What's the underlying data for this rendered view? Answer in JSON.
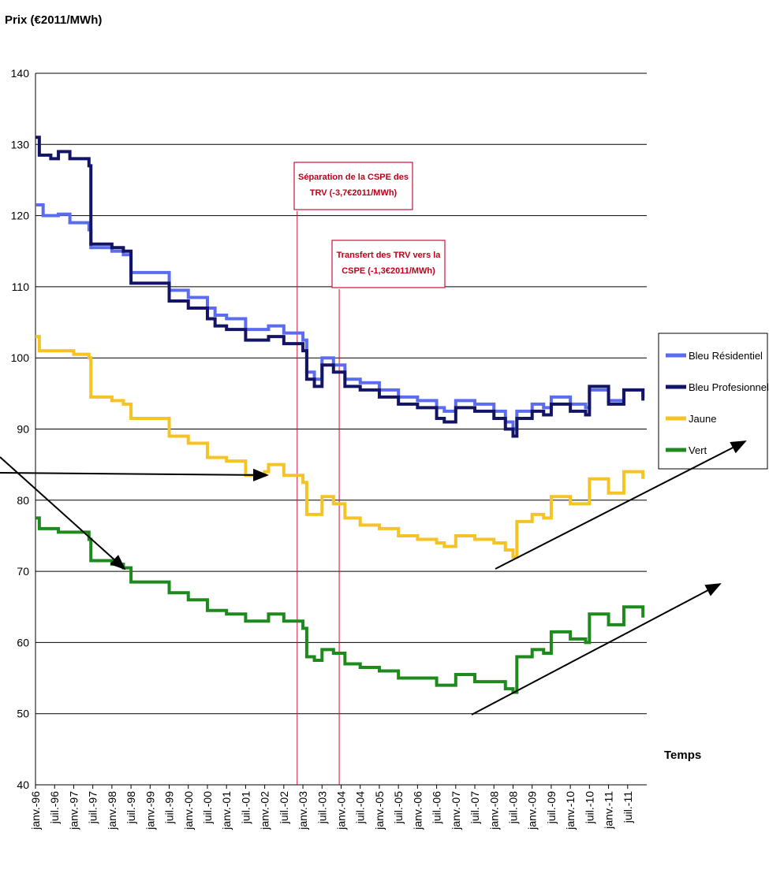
{
  "chart_data": {
    "type": "line",
    "ylabel": "Prix (€2011/MWh)",
    "xlabel": "Temps",
    "ylim": [
      40,
      140
    ],
    "yticks": [
      40,
      50,
      60,
      70,
      80,
      90,
      100,
      110,
      120,
      130,
      140
    ],
    "grid": "horizontal",
    "legend_position": "right",
    "x_ticks": [
      "janv.-96",
      "juil.-96",
      "janv.-97",
      "juil.-97",
      "janv.-98",
      "juil.-98",
      "janv.-99",
      "juil.-99",
      "janv.-00",
      "juil.-00",
      "janv.-01",
      "juil.-01",
      "janv.-02",
      "juil.-02",
      "janv.-03",
      "juil.-03",
      "janv.-04",
      "juil.-04",
      "janv.-05",
      "juil.-05",
      "janv.-06",
      "juil.-06",
      "janv.-07",
      "juil.-07",
      "janv.-08",
      "juil.-08",
      "janv.-09",
      "juil.-09",
      "janv.-10",
      "juil.-10",
      "janv.-11",
      "juil.-11"
    ],
    "series": [
      {
        "name": "Bleu Résidentiel",
        "color": "#5b6cf0",
        "points": [
          [
            1996.0,
            121.5
          ],
          [
            1996.2,
            120.0
          ],
          [
            1996.6,
            120.2
          ],
          [
            1996.9,
            119.0
          ],
          [
            1997.4,
            118.0
          ],
          [
            1997.45,
            115.5
          ],
          [
            1998.0,
            115.0
          ],
          [
            1998.3,
            114.5
          ],
          [
            1998.5,
            112.0
          ],
          [
            1999.0,
            112.0
          ],
          [
            1999.5,
            109.5
          ],
          [
            2000.0,
            108.5
          ],
          [
            2000.5,
            107.0
          ],
          [
            2000.7,
            106.0
          ],
          [
            2001.0,
            105.5
          ],
          [
            2001.5,
            104.0
          ],
          [
            2002.0,
            104.0
          ],
          [
            2002.1,
            104.5
          ],
          [
            2002.5,
            103.5
          ],
          [
            2003.0,
            102.5
          ],
          [
            2003.1,
            98.0
          ],
          [
            2003.3,
            97.0
          ],
          [
            2003.5,
            100.0
          ],
          [
            2003.8,
            99.0
          ],
          [
            2004.0,
            99.0
          ],
          [
            2004.1,
            97.0
          ],
          [
            2004.5,
            96.5
          ],
          [
            2005.0,
            95.5
          ],
          [
            2005.5,
            94.5
          ],
          [
            2006.0,
            94.0
          ],
          [
            2006.5,
            93.0
          ],
          [
            2006.7,
            92.5
          ],
          [
            2007.0,
            94.0
          ],
          [
            2007.5,
            93.5
          ],
          [
            2008.0,
            92.5
          ],
          [
            2008.3,
            91.0
          ],
          [
            2008.5,
            90.0
          ],
          [
            2008.6,
            92.5
          ],
          [
            2009.0,
            93.5
          ],
          [
            2009.3,
            93.0
          ],
          [
            2009.5,
            94.5
          ],
          [
            2010.0,
            93.5
          ],
          [
            2010.4,
            93.0
          ],
          [
            2010.5,
            95.5
          ],
          [
            2011.0,
            94.0
          ],
          [
            2011.2,
            94.0
          ],
          [
            2011.4,
            95.5
          ],
          [
            2011.9,
            94.5
          ]
        ]
      },
      {
        "name": "Bleu Profesionnel",
        "color": "#141466",
        "points": [
          [
            1996.0,
            131.0
          ],
          [
            1996.1,
            128.5
          ],
          [
            1996.4,
            128.0
          ],
          [
            1996.6,
            129.0
          ],
          [
            1996.9,
            128.0
          ],
          [
            1997.4,
            127.0
          ],
          [
            1997.45,
            116.0
          ],
          [
            1998.0,
            115.5
          ],
          [
            1998.3,
            115.0
          ],
          [
            1998.5,
            110.5
          ],
          [
            1999.0,
            110.5
          ],
          [
            1999.5,
            108.0
          ],
          [
            2000.0,
            107.0
          ],
          [
            2000.5,
            105.5
          ],
          [
            2000.7,
            104.5
          ],
          [
            2001.0,
            104.0
          ],
          [
            2001.5,
            102.5
          ],
          [
            2002.0,
            102.5
          ],
          [
            2002.1,
            103.0
          ],
          [
            2002.5,
            102.0
          ],
          [
            2003.0,
            101.0
          ],
          [
            2003.1,
            97.0
          ],
          [
            2003.3,
            96.0
          ],
          [
            2003.5,
            99.0
          ],
          [
            2003.8,
            98.0
          ],
          [
            2004.0,
            98.0
          ],
          [
            2004.1,
            96.0
          ],
          [
            2004.5,
            95.5
          ],
          [
            2005.0,
            94.5
          ],
          [
            2005.5,
            93.5
          ],
          [
            2006.0,
            93.0
          ],
          [
            2006.5,
            91.5
          ],
          [
            2006.7,
            91.0
          ],
          [
            2007.0,
            93.0
          ],
          [
            2007.5,
            92.5
          ],
          [
            2008.0,
            91.5
          ],
          [
            2008.3,
            90.0
          ],
          [
            2008.5,
            89.0
          ],
          [
            2008.6,
            91.5
          ],
          [
            2009.0,
            92.5
          ],
          [
            2009.3,
            92.0
          ],
          [
            2009.5,
            93.5
          ],
          [
            2010.0,
            92.5
          ],
          [
            2010.4,
            92.0
          ],
          [
            2010.5,
            96.0
          ],
          [
            2011.0,
            93.5
          ],
          [
            2011.2,
            93.5
          ],
          [
            2011.4,
            95.5
          ],
          [
            2011.9,
            94.0
          ]
        ]
      },
      {
        "name": "Jaune",
        "color": "#f5c324",
        "points": [
          [
            1996.0,
            103.0
          ],
          [
            1996.1,
            101.0
          ],
          [
            1996.6,
            101.0
          ],
          [
            1997.0,
            100.5
          ],
          [
            1997.4,
            100.0
          ],
          [
            1997.45,
            94.5
          ],
          [
            1998.0,
            94.0
          ],
          [
            1998.3,
            93.5
          ],
          [
            1998.5,
            91.5
          ],
          [
            1999.0,
            91.5
          ],
          [
            1999.5,
            89.0
          ],
          [
            2000.0,
            88.0
          ],
          [
            2000.5,
            86.0
          ],
          [
            2001.0,
            85.5
          ],
          [
            2001.5,
            83.5
          ],
          [
            2002.0,
            84.0
          ],
          [
            2002.1,
            85.0
          ],
          [
            2002.5,
            83.5
          ],
          [
            2003.0,
            82.5
          ],
          [
            2003.1,
            78.0
          ],
          [
            2003.3,
            78.0
          ],
          [
            2003.5,
            80.5
          ],
          [
            2003.8,
            79.5
          ],
          [
            2004.0,
            79.5
          ],
          [
            2004.1,
            77.5
          ],
          [
            2004.5,
            76.5
          ],
          [
            2005.0,
            76.0
          ],
          [
            2005.5,
            75.0
          ],
          [
            2006.0,
            74.5
          ],
          [
            2006.5,
            74.0
          ],
          [
            2006.7,
            73.5
          ],
          [
            2007.0,
            75.0
          ],
          [
            2007.5,
            74.5
          ],
          [
            2008.0,
            74.0
          ],
          [
            2008.3,
            73.0
          ],
          [
            2008.5,
            72.0
          ],
          [
            2008.6,
            77.0
          ],
          [
            2009.0,
            78.0
          ],
          [
            2009.3,
            77.5
          ],
          [
            2009.5,
            80.5
          ],
          [
            2010.0,
            79.5
          ],
          [
            2010.4,
            79.5
          ],
          [
            2010.5,
            83.0
          ],
          [
            2011.0,
            81.0
          ],
          [
            2011.2,
            81.0
          ],
          [
            2011.4,
            84.0
          ],
          [
            2011.9,
            83.0
          ]
        ]
      },
      {
        "name": "Vert",
        "color": "#1e8a1e",
        "points": [
          [
            1996.0,
            77.5
          ],
          [
            1996.1,
            76.0
          ],
          [
            1996.6,
            75.5
          ],
          [
            1997.0,
            75.5
          ],
          [
            1997.4,
            74.5
          ],
          [
            1997.45,
            71.5
          ],
          [
            1998.0,
            71.0
          ],
          [
            1998.3,
            70.5
          ],
          [
            1998.5,
            68.5
          ],
          [
            1999.0,
            68.5
          ],
          [
            1999.5,
            67.0
          ],
          [
            2000.0,
            66.0
          ],
          [
            2000.5,
            64.5
          ],
          [
            2001.0,
            64.0
          ],
          [
            2001.5,
            63.0
          ],
          [
            2002.0,
            63.0
          ],
          [
            2002.1,
            64.0
          ],
          [
            2002.5,
            63.0
          ],
          [
            2003.0,
            62.0
          ],
          [
            2003.1,
            58.0
          ],
          [
            2003.3,
            57.5
          ],
          [
            2003.5,
            59.0
          ],
          [
            2003.8,
            58.5
          ],
          [
            2004.0,
            58.5
          ],
          [
            2004.1,
            57.0
          ],
          [
            2004.5,
            56.5
          ],
          [
            2005.0,
            56.0
          ],
          [
            2005.5,
            55.0
          ],
          [
            2006.0,
            55.0
          ],
          [
            2006.5,
            54.0
          ],
          [
            2006.7,
            54.0
          ],
          [
            2007.0,
            55.5
          ],
          [
            2007.5,
            54.5
          ],
          [
            2008.0,
            54.5
          ],
          [
            2008.3,
            53.5
          ],
          [
            2008.5,
            53.0
          ],
          [
            2008.6,
            58.0
          ],
          [
            2009.0,
            59.0
          ],
          [
            2009.3,
            58.5
          ],
          [
            2009.5,
            61.5
          ],
          [
            2010.0,
            60.5
          ],
          [
            2010.4,
            60.0
          ],
          [
            2010.5,
            64.0
          ],
          [
            2011.0,
            62.5
          ],
          [
            2011.2,
            62.5
          ],
          [
            2011.4,
            65.0
          ],
          [
            2011.9,
            63.5
          ]
        ]
      }
    ],
    "annotations": [
      {
        "x": 2002.85,
        "lines": [
          "Séparation de la CSPE des",
          "TRV (-3,7€2011/MWh)"
        ]
      },
      {
        "x": 2003.95,
        "lines": [
          "Transfert des TRV vers la",
          "CSPE (-1,3€2011/MWh)"
        ]
      }
    ]
  }
}
